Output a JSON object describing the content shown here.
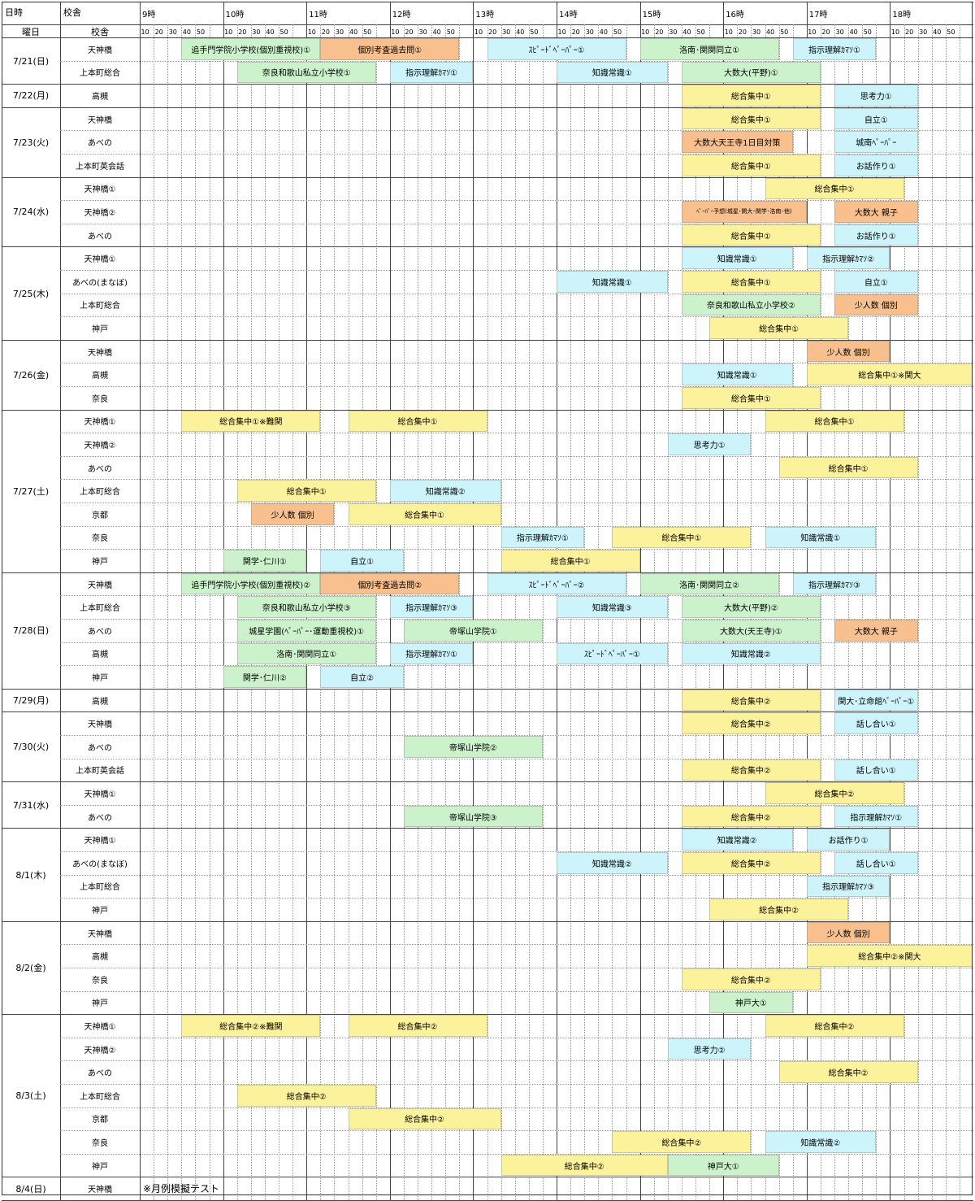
{
  "header": {
    "date_label": "日時",
    "site_label": "校舎",
    "weekday_label": "曜日",
    "site_label2": "校舎",
    "hours": [
      "9時",
      "10時",
      "11時",
      "12時",
      "13時",
      "14時",
      "15時",
      "16時",
      "17時",
      "18時"
    ],
    "minutes": [
      "10",
      "20",
      "30",
      "40",
      "50"
    ]
  },
  "colors": {
    "green": "#ccf2cc",
    "orange": "#f9c08f",
    "cyan": "#ccf4fa",
    "yellow": "#fcf29c"
  },
  "groups": [
    {
      "date": "7/21(日)",
      "rows": [
        {
          "site": "天神橋",
          "blocks": [
            {
              "s": "9:30",
              "e": "11:10",
              "t": "追手門学院小学校(個別重視校)①",
              "c": "green"
            },
            {
              "s": "11:10",
              "e": "12:50",
              "t": "個別考査過去問①",
              "c": "orange"
            },
            {
              "s": "13:10",
              "e": "14:50",
              "t": "ｽﾋﾟｰﾄﾞﾍﾟｰﾊﾟｰ①",
              "c": "cyan"
            },
            {
              "s": "15:00",
              "e": "16:40",
              "t": "洛南･関関同立①",
              "c": "green"
            },
            {
              "s": "16:50",
              "e": "17:50",
              "t": "指示理解ｶﾏｿ①",
              "c": "cyan"
            }
          ]
        },
        {
          "site": "上本町総合",
          "blocks": [
            {
              "s": "10:10",
              "e": "11:50",
              "t": "奈良和歌山私立小学校①",
              "c": "green"
            },
            {
              "s": "12:00",
              "e": "13:00",
              "t": "指示理解ｶﾏｿ①",
              "c": "cyan"
            },
            {
              "s": "14:00",
              "e": "15:20",
              "t": "知識常識①",
              "c": "cyan"
            },
            {
              "s": "15:30",
              "e": "17:10",
              "t": "大数大(平野)①",
              "c": "green"
            }
          ]
        }
      ]
    },
    {
      "date": "7/22(月)",
      "rows": [
        {
          "site": "高槻",
          "blocks": [
            {
              "s": "15:30",
              "e": "17:10",
              "t": "総合集中①",
              "c": "yellow"
            },
            {
              "s": "17:20",
              "e": "18:20",
              "t": "思考力①",
              "c": "cyan"
            }
          ]
        }
      ]
    },
    {
      "date": "7/23(火)",
      "rows": [
        {
          "site": "天神橋",
          "blocks": [
            {
              "s": "15:30",
              "e": "17:10",
              "t": "総合集中①",
              "c": "yellow"
            },
            {
              "s": "17:20",
              "e": "18:20",
              "t": "自立①",
              "c": "cyan"
            }
          ]
        },
        {
          "site": "あべの",
          "blocks": [
            {
              "s": "15:30",
              "e": "16:50",
              "t": "大数大天王寺1日目対策",
              "c": "orange"
            },
            {
              "s": "17:20",
              "e": "18:20",
              "t": "城南ﾍﾟｰﾊﾟｰ",
              "c": "cyan"
            }
          ]
        },
        {
          "site": "上本町英会話",
          "blocks": [
            {
              "s": "15:30",
              "e": "17:10",
              "t": "総合集中①",
              "c": "yellow"
            },
            {
              "s": "17:20",
              "e": "18:20",
              "t": "お話作り①",
              "c": "cyan"
            }
          ]
        }
      ]
    },
    {
      "date": "7/24(水)",
      "rows": [
        {
          "site": "天神橋①",
          "blocks": [
            {
              "s": "16:30",
              "e": "18:10",
              "t": "総合集中①",
              "c": "yellow"
            }
          ]
        },
        {
          "site": "天神橋②",
          "blocks": [
            {
              "s": "15:30",
              "e": "17:00",
              "t": "ﾍﾟｰﾊﾟｰ予想(城星･関大･関学･洛南･他)",
              "c": "orange",
              "small": true
            },
            {
              "s": "17:20",
              "e": "18:20",
              "t": "大数大 親子",
              "c": "orange"
            }
          ]
        },
        {
          "site": "あべの",
          "blocks": [
            {
              "s": "15:30",
              "e": "17:10",
              "t": "総合集中①",
              "c": "yellow"
            },
            {
              "s": "17:20",
              "e": "18:20",
              "t": "お話作り①",
              "c": "cyan"
            }
          ]
        }
      ]
    },
    {
      "date": "7/25(木)",
      "rows": [
        {
          "site": "天神橋①",
          "blocks": [
            {
              "s": "15:30",
              "e": "16:50",
              "t": "知識常識①",
              "c": "cyan"
            },
            {
              "s": "17:00",
              "e": "18:00",
              "t": "指示理解ｶﾏｿ②",
              "c": "cyan"
            }
          ]
        },
        {
          "site": "あべの(まなぼ)",
          "blocks": [
            {
              "s": "14:00",
              "e": "15:20",
              "t": "知識常識①",
              "c": "cyan"
            },
            {
              "s": "15:30",
              "e": "17:10",
              "t": "総合集中①",
              "c": "yellow"
            },
            {
              "s": "17:20",
              "e": "18:20",
              "t": "自立①",
              "c": "cyan"
            }
          ]
        },
        {
          "site": "上本町総合",
          "blocks": [
            {
              "s": "15:30",
              "e": "17:10",
              "t": "奈良和歌山私立小学校②",
              "c": "green"
            },
            {
              "s": "17:20",
              "e": "18:20",
              "t": "少人数 個別",
              "c": "orange"
            }
          ]
        },
        {
          "site": "神戸",
          "blocks": [
            {
              "s": "15:50",
              "e": "17:30",
              "t": "総合集中①",
              "c": "yellow"
            }
          ]
        }
      ]
    },
    {
      "date": "7/26(金)",
      "rows": [
        {
          "site": "天神橋",
          "blocks": [
            {
              "s": "17:00",
              "e": "18:00",
              "t": "少人数 個別",
              "c": "orange"
            }
          ]
        },
        {
          "site": "高槻",
          "blocks": [
            {
              "s": "15:30",
              "e": "16:50",
              "t": "知識常識①",
              "c": "cyan"
            },
            {
              "s": "17:00",
              "e": "19:00",
              "t": "総合集中①※関大",
              "c": "yellow"
            }
          ]
        },
        {
          "site": "奈良",
          "blocks": [
            {
              "s": "15:30",
              "e": "17:10",
              "t": "総合集中①",
              "c": "yellow"
            }
          ]
        }
      ]
    },
    {
      "date": "7/27(土)",
      "rows": [
        {
          "site": "天神橋①",
          "blocks": [
            {
              "s": "9:30",
              "e": "11:10",
              "t": "総合集中①※難関",
              "c": "yellow"
            },
            {
              "s": "11:30",
              "e": "13:10",
              "t": "総合集中①",
              "c": "yellow"
            },
            {
              "s": "16:30",
              "e": "18:10",
              "t": "総合集中①",
              "c": "yellow"
            }
          ]
        },
        {
          "site": "天神橋②",
          "blocks": [
            {
              "s": "15:20",
              "e": "16:20",
              "t": "思考力①",
              "c": "cyan"
            }
          ]
        },
        {
          "site": "あべの",
          "blocks": [
            {
              "s": "16:40",
              "e": "18:20",
              "t": "総合集中①",
              "c": "yellow"
            }
          ]
        },
        {
          "site": "上本町総合",
          "blocks": [
            {
              "s": "10:10",
              "e": "11:50",
              "t": "総合集中①",
              "c": "yellow"
            },
            {
              "s": "12:00",
              "e": "13:20",
              "t": "知識常識②",
              "c": "cyan"
            }
          ]
        },
        {
          "site": "京都",
          "blocks": [
            {
              "s": "10:20",
              "e": "11:20",
              "t": "少人数 個別",
              "c": "orange"
            },
            {
              "s": "11:30",
              "e": "13:20",
              "t": "総合集中①",
              "c": "yellow"
            }
          ]
        },
        {
          "site": "奈良",
          "blocks": [
            {
              "s": "13:20",
              "e": "14:20",
              "t": "指示理解ｶﾏｿ①",
              "c": "cyan"
            },
            {
              "s": "14:40",
              "e": "16:20",
              "t": "総合集中①",
              "c": "yellow"
            },
            {
              "s": "16:30",
              "e": "17:50",
              "t": "知識常識①",
              "c": "cyan"
            }
          ]
        },
        {
          "site": "神戸",
          "blocks": [
            {
              "s": "10:00",
              "e": "11:00",
              "t": "関学･仁川①",
              "c": "green"
            },
            {
              "s": "11:10",
              "e": "12:10",
              "t": "自立①",
              "c": "cyan"
            },
            {
              "s": "13:20",
              "e": "15:00",
              "t": "総合集中①",
              "c": "yellow"
            }
          ]
        }
      ]
    },
    {
      "date": "7/28(日)",
      "rows": [
        {
          "site": "天神橋",
          "blocks": [
            {
              "s": "9:30",
              "e": "11:10",
              "t": "追手門学院小学校(個別重視校)②",
              "c": "green"
            },
            {
              "s": "11:10",
              "e": "12:50",
              "t": "個別考査過去問②",
              "c": "orange"
            },
            {
              "s": "13:10",
              "e": "14:50",
              "t": "ｽﾋﾟｰﾄﾞﾍﾟｰﾊﾟｰ②",
              "c": "cyan"
            },
            {
              "s": "15:00",
              "e": "16:40",
              "t": "洛南･関関同立②",
              "c": "green"
            },
            {
              "s": "16:50",
              "e": "17:50",
              "t": "指示理解ｶﾏｿ③",
              "c": "cyan"
            }
          ]
        },
        {
          "site": "上本町総合",
          "blocks": [
            {
              "s": "10:10",
              "e": "11:50",
              "t": "奈良和歌山私立小学校③",
              "c": "green"
            },
            {
              "s": "12:00",
              "e": "13:00",
              "t": "指示理解ｶﾏｿ③",
              "c": "cyan"
            },
            {
              "s": "14:00",
              "e": "15:20",
              "t": "知識常識③",
              "c": "cyan"
            },
            {
              "s": "15:30",
              "e": "17:10",
              "t": "大数大(平野)②",
              "c": "green"
            }
          ]
        },
        {
          "site": "あべの",
          "blocks": [
            {
              "s": "10:10",
              "e": "11:50",
              "t": "城星学園(ﾍﾟｰﾊﾟｰ･運動重視校)①",
              "c": "green"
            },
            {
              "s": "12:10",
              "e": "13:50",
              "t": "帝塚山学院①",
              "c": "green"
            },
            {
              "s": "15:30",
              "e": "17:10",
              "t": "大数大(天王寺)①",
              "c": "green"
            },
            {
              "s": "17:20",
              "e": "18:20",
              "t": "大数大 親子",
              "c": "orange"
            }
          ]
        },
        {
          "site": "高槻",
          "blocks": [
            {
              "s": "10:10",
              "e": "11:50",
              "t": "洛南･関関同立①",
              "c": "green"
            },
            {
              "s": "12:00",
              "e": "13:00",
              "t": "指示理解ｶﾏｿ①",
              "c": "cyan"
            },
            {
              "s": "14:00",
              "e": "15:20",
              "t": "ｽﾋﾟｰﾄﾞﾍﾟｰﾊﾟｰ①",
              "c": "cyan"
            },
            {
              "s": "15:30",
              "e": "17:10",
              "t": "知識常識②",
              "c": "cyan"
            }
          ]
        },
        {
          "site": "神戸",
          "blocks": [
            {
              "s": "10:00",
              "e": "11:00",
              "t": "関学･仁川②",
              "c": "green"
            },
            {
              "s": "11:10",
              "e": "12:10",
              "t": "自立②",
              "c": "cyan"
            }
          ]
        }
      ]
    },
    {
      "date": "7/29(月)",
      "rows": [
        {
          "site": "高槻",
          "blocks": [
            {
              "s": "15:30",
              "e": "17:10",
              "t": "総合集中②",
              "c": "yellow"
            },
            {
              "s": "17:20",
              "e": "18:20",
              "t": "関大･立命館ﾍﾟｰﾊﾟｰ①",
              "c": "cyan"
            }
          ]
        }
      ]
    },
    {
      "date": "7/30(火)",
      "rows": [
        {
          "site": "天神橋",
          "blocks": [
            {
              "s": "15:30",
              "e": "17:10",
              "t": "総合集中②",
              "c": "yellow"
            },
            {
              "s": "17:20",
              "e": "18:20",
              "t": "話し合い①",
              "c": "cyan"
            }
          ]
        },
        {
          "site": "あべの",
          "blocks": [
            {
              "s": "12:10",
              "e": "13:50",
              "t": "帝塚山学院②",
              "c": "green"
            }
          ]
        },
        {
          "site": "上本町英会話",
          "blocks": [
            {
              "s": "15:30",
              "e": "17:10",
              "t": "総合集中②",
              "c": "yellow"
            },
            {
              "s": "17:20",
              "e": "18:20",
              "t": "話し合い①",
              "c": "cyan"
            }
          ]
        }
      ]
    },
    {
      "date": "7/31(水)",
      "rows": [
        {
          "site": "天神橋①",
          "blocks": [
            {
              "s": "16:30",
              "e": "18:10",
              "t": "総合集中②",
              "c": "yellow"
            }
          ]
        },
        {
          "site": "あべの",
          "blocks": [
            {
              "s": "12:10",
              "e": "13:50",
              "t": "帝塚山学院③",
              "c": "green"
            },
            {
              "s": "15:30",
              "e": "17:10",
              "t": "総合集中②",
              "c": "yellow"
            },
            {
              "s": "17:20",
              "e": "18:20",
              "t": "指示理解ｶﾏｿ①",
              "c": "cyan"
            }
          ]
        }
      ]
    },
    {
      "date": "8/1(木)",
      "rows": [
        {
          "site": "天神橋①",
          "blocks": [
            {
              "s": "15:30",
              "e": "16:50",
              "t": "知識常識②",
              "c": "cyan"
            },
            {
              "s": "17:00",
              "e": "18:00",
              "t": "お話作り①",
              "c": "cyan"
            }
          ]
        },
        {
          "site": "あべの(まなぼ)",
          "blocks": [
            {
              "s": "14:00",
              "e": "15:20",
              "t": "知識常識②",
              "c": "cyan"
            },
            {
              "s": "15:30",
              "e": "17:10",
              "t": "総合集中②",
              "c": "yellow"
            },
            {
              "s": "17:20",
              "e": "18:20",
              "t": "話し合い①",
              "c": "cyan"
            }
          ]
        },
        {
          "site": "上本町総合",
          "blocks": [
            {
              "s": "17:00",
              "e": "18:00",
              "t": "指示理解ｶﾏｿ③",
              "c": "cyan"
            }
          ]
        },
        {
          "site": "神戸",
          "blocks": [
            {
              "s": "15:50",
              "e": "17:30",
              "t": "総合集中②",
              "c": "yellow"
            }
          ]
        }
      ]
    },
    {
      "date": "8/2(金)",
      "rows": [
        {
          "site": "天神橋",
          "blocks": [
            {
              "s": "17:00",
              "e": "18:00",
              "t": "少人数 個別",
              "c": "orange"
            }
          ]
        },
        {
          "site": "高槻",
          "blocks": [
            {
              "s": "17:00",
              "e": "19:00",
              "t": "総合集中②※関大",
              "c": "yellow"
            }
          ]
        },
        {
          "site": "奈良",
          "blocks": [
            {
              "s": "15:30",
              "e": "17:10",
              "t": "総合集中②",
              "c": "yellow"
            }
          ]
        },
        {
          "site": "神戸",
          "blocks": [
            {
              "s": "15:50",
              "e": "16:50",
              "t": "神戸大①",
              "c": "green"
            }
          ]
        }
      ]
    },
    {
      "date": "8/3(土)",
      "rows": [
        {
          "site": "天神橋①",
          "blocks": [
            {
              "s": "9:30",
              "e": "11:10",
              "t": "総合集中②※難関",
              "c": "yellow"
            },
            {
              "s": "11:30",
              "e": "13:10",
              "t": "総合集中②",
              "c": "yellow"
            },
            {
              "s": "16:30",
              "e": "18:10",
              "t": "総合集中②",
              "c": "yellow"
            }
          ]
        },
        {
          "site": "天神橋②",
          "blocks": [
            {
              "s": "15:20",
              "e": "16:20",
              "t": "思考力②",
              "c": "cyan"
            }
          ]
        },
        {
          "site": "あべの",
          "blocks": [
            {
              "s": "16:40",
              "e": "18:20",
              "t": "総合集中②",
              "c": "yellow"
            }
          ]
        },
        {
          "site": "上本町総合",
          "blocks": [
            {
              "s": "10:10",
              "e": "11:50",
              "t": "総合集中②",
              "c": "yellow"
            }
          ]
        },
        {
          "site": "京都",
          "blocks": [
            {
              "s": "11:30",
              "e": "13:20",
              "t": "総合集中②",
              "c": "yellow"
            }
          ]
        },
        {
          "site": "奈良",
          "blocks": [
            {
              "s": "14:40",
              "e": "16:20",
              "t": "総合集中②",
              "c": "yellow"
            },
            {
              "s": "16:30",
              "e": "17:50",
              "t": "知識常識②",
              "c": "cyan"
            }
          ]
        },
        {
          "site": "神戸",
          "blocks": [
            {
              "s": "13:20",
              "e": "15:20",
              "t": "総合集中②",
              "c": "yellow"
            },
            {
              "s": "15:20",
              "e": "16:40",
              "t": "神戸大①",
              "c": "green"
            }
          ]
        }
      ]
    },
    {
      "date": "8/4(日)",
      "rows": [
        {
          "site": "天神橋",
          "note": "※月例模擬テスト",
          "blocks": []
        }
      ]
    }
  ]
}
